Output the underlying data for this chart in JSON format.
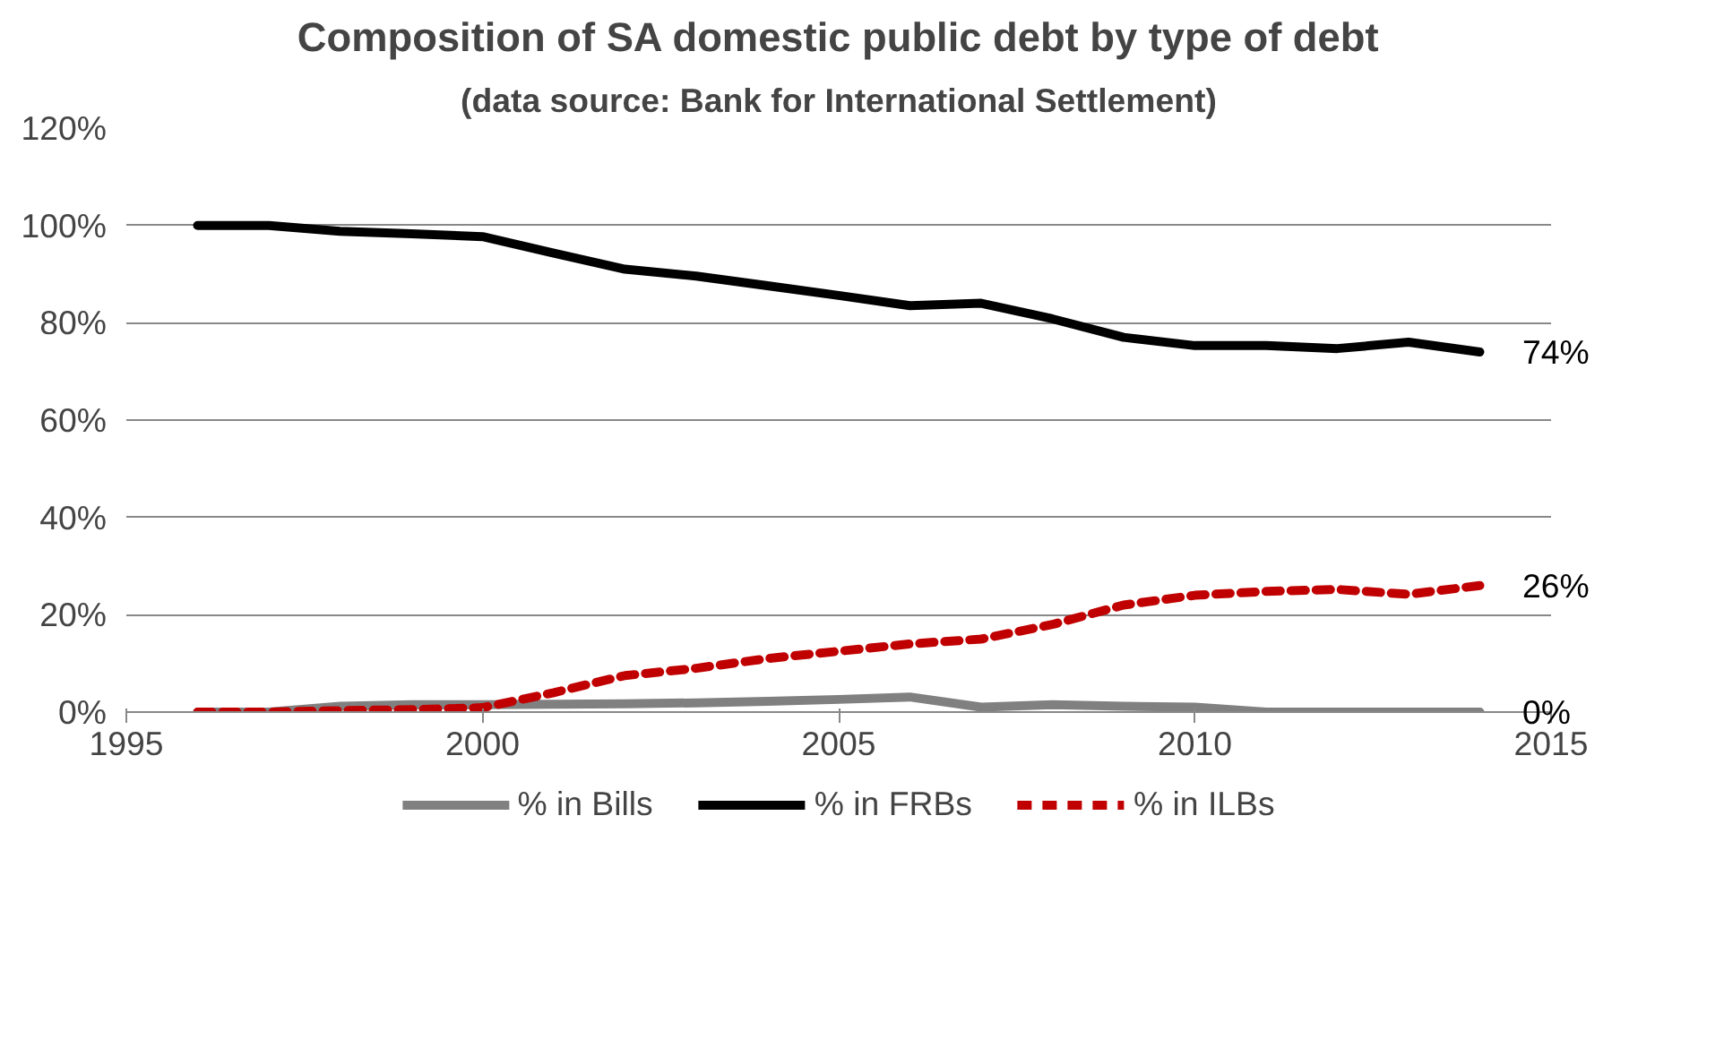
{
  "chart_data": {
    "type": "line",
    "title": "Composition of SA domestic public debt by type of debt",
    "subtitle": "(data source: Bank for International Settlement)",
    "x": [
      1996,
      1997,
      1998,
      1999,
      2000,
      2001,
      2002,
      2003,
      2004,
      2005,
      2006,
      2007,
      2008,
      2009,
      2010,
      2011,
      2012,
      2013,
      2014
    ],
    "series": [
      {
        "name": "% in Bills",
        "color": "#808080",
        "line_style": "solid",
        "values": [
          0,
          0,
          1.2,
          1.5,
          1.5,
          1.6,
          1.7,
          1.9,
          2.2,
          2.6,
          3.1,
          1,
          1.5,
          1.2,
          1,
          0,
          0,
          0,
          0
        ],
        "value_labels": [
          null,
          null,
          null,
          null,
          null,
          null,
          null,
          null,
          null,
          null,
          null,
          null,
          null,
          null,
          null,
          null,
          null,
          null,
          "0%"
        ]
      },
      {
        "name": "% in FRBs",
        "color": "#000000",
        "line_style": "solid",
        "values": [
          100,
          100,
          98.8,
          98.3,
          97.7,
          94.3,
          91,
          89.6,
          87.6,
          85.6,
          83.5,
          84,
          80.8,
          77,
          75.3,
          75.3,
          74.7,
          76,
          74
        ],
        "value_labels": [
          null,
          null,
          null,
          null,
          null,
          null,
          null,
          null,
          null,
          null,
          null,
          null,
          null,
          null,
          null,
          null,
          null,
          null,
          "74%"
        ]
      },
      {
        "name": "% in ILBs",
        "color": "#c00000",
        "line_style": "dashed",
        "values": [
          0,
          0,
          0.3,
          0.5,
          0.9,
          4,
          7.5,
          9,
          11,
          12.5,
          14,
          15,
          18,
          22,
          24,
          24.8,
          25.2,
          24.2,
          26
        ],
        "value_labels": [
          null,
          null,
          null,
          null,
          null,
          null,
          null,
          null,
          null,
          null,
          null,
          null,
          null,
          null,
          null,
          null,
          null,
          null,
          "26%"
        ]
      }
    ],
    "xlim": [
      1995,
      2015
    ],
    "xticks": [
      1995,
      2000,
      2005,
      2010,
      2015
    ],
    "ylim": [
      0,
      120
    ],
    "yticks": [
      {
        "value": 0,
        "label": "0%"
      },
      {
        "value": 20,
        "label": "20%"
      },
      {
        "value": 40,
        "label": "40%"
      },
      {
        "value": 60,
        "label": "60%"
      },
      {
        "value": 80,
        "label": "80%"
      },
      {
        "value": 100,
        "label": "100%"
      },
      {
        "value": 120,
        "label": "120%"
      }
    ],
    "grid": "y",
    "legend": "bottom",
    "marker": "none"
  }
}
